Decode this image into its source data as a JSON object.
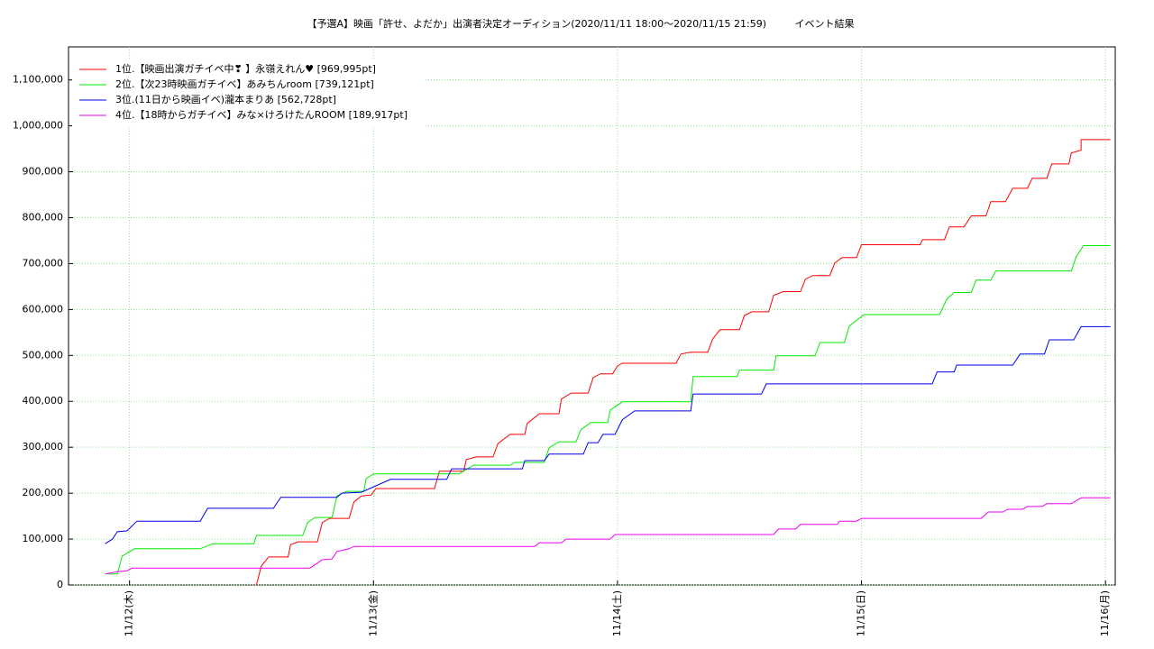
{
  "chart_data": {
    "type": "line",
    "title": "【予選A】映画「許せ、よだか」出演者決定オーディション(2020/11/11 18:00〜2020/11/15 21:59)         イベント結果",
    "xlim": [
      -0.25,
      4.04
    ],
    "xticks": [
      {
        "value": 0,
        "label": "11/12(木)"
      },
      {
        "value": 1,
        "label": "11/13(金)"
      },
      {
        "value": 2,
        "label": "11/14(土)"
      },
      {
        "value": 3,
        "label": "11/15(日)"
      },
      {
        "value": 4,
        "label": "11/16(月)"
      }
    ],
    "ylim": [
      0,
      1172000
    ],
    "yticks": [
      0,
      {
        "value": 100000,
        "label": "100,000"
      },
      {
        "value": 200000,
        "label": "200,000"
      },
      {
        "value": 300000,
        "label": "300,000"
      },
      {
        "value": 400000,
        "label": "400,000"
      },
      {
        "value": 500000,
        "label": "500,000"
      },
      {
        "value": 600000,
        "label": "600,000"
      },
      {
        "value": 700000,
        "label": "700,000"
      },
      {
        "value": 800000,
        "label": "800,000"
      },
      {
        "value": 900000,
        "label": "900,000"
      },
      {
        "value": 1000000,
        "label": "1,000,000"
      },
      {
        "value": 1100000,
        "label": "1,100,000"
      }
    ],
    "grid": true,
    "legend": "upper left",
    "series": [
      {
        "name": "1位.【映画出演ガチイベ中❣ 】永嶺えれん♥ [969,995pt]",
        "color": "#ff0000",
        "x": [
          0.52,
          0.54,
          0.57,
          0.65,
          0.66,
          0.69,
          0.77,
          0.79,
          0.82,
          0.9,
          0.92,
          0.95,
          0.99,
          1.01,
          1.25,
          1.27,
          1.37,
          1.38,
          1.42,
          1.49,
          1.51,
          1.56,
          1.62,
          1.63,
          1.68,
          1.76,
          1.77,
          1.81,
          1.88,
          1.9,
          1.93,
          1.98,
          2.0,
          2.02,
          2.24,
          2.26,
          2.3,
          2.37,
          2.39,
          2.42,
          2.5,
          2.52,
          2.55,
          2.62,
          2.64,
          2.68,
          2.75,
          2.77,
          2.8,
          2.87,
          2.89,
          2.92,
          2.98,
          3.0,
          3.24,
          3.25,
          3.34,
          3.36,
          3.42,
          3.45,
          3.51,
          3.53,
          3.59,
          3.62,
          3.68,
          3.7,
          3.76,
          3.78,
          3.85,
          3.86,
          3.9,
          3.9,
          4.02
        ],
        "values": [
          0,
          41000,
          61000,
          61000,
          88000,
          94000,
          94000,
          136000,
          145000,
          145000,
          181000,
          194000,
          196000,
          210000,
          210000,
          248000,
          248000,
          273000,
          279000,
          279000,
          308000,
          328000,
          328000,
          352000,
          373000,
          373000,
          405000,
          418000,
          418000,
          452000,
          460000,
          460000,
          477000,
          483000,
          483000,
          503000,
          507000,
          507000,
          536000,
          556000,
          556000,
          587000,
          595000,
          595000,
          631000,
          639000,
          639000,
          666000,
          674000,
          674000,
          701000,
          713000,
          713000,
          741000,
          741000,
          752000,
          752000,
          780000,
          780000,
          804000,
          804000,
          835000,
          835000,
          864000,
          864000,
          886000,
          886000,
          917000,
          917000,
          941000,
          947000,
          969995,
          969995
        ]
      },
      {
        "name": "2位.【次23時映画ガチイベ】あみちんroom [739,121pt]",
        "color": "#00ee00",
        "x": [
          -0.09,
          -0.05,
          -0.03,
          0.02,
          0.29,
          0.34,
          0.51,
          0.52,
          0.71,
          0.73,
          0.76,
          0.83,
          0.85,
          0.89,
          0.96,
          0.97,
          1.0,
          1.35,
          1.41,
          1.56,
          1.58,
          1.7,
          1.72,
          1.76,
          1.83,
          1.85,
          1.89,
          1.96,
          1.97,
          2.02,
          2.3,
          2.31,
          2.49,
          2.5,
          2.64,
          2.65,
          2.81,
          2.83,
          2.93,
          2.95,
          3.01,
          3.32,
          3.35,
          3.38,
          3.45,
          3.47,
          3.53,
          3.55,
          3.86,
          3.88,
          3.91,
          4.02
        ],
        "values": [
          24000,
          24000,
          63000,
          79000,
          79000,
          90000,
          90000,
          108000,
          108000,
          136000,
          147000,
          147000,
          194000,
          204000,
          204000,
          232000,
          242000,
          242000,
          261000,
          261000,
          267000,
          267000,
          299000,
          312000,
          312000,
          338000,
          354000,
          354000,
          381000,
          399000,
          399000,
          454000,
          454000,
          468000,
          468000,
          499000,
          499000,
          528000,
          528000,
          564000,
          589000,
          589000,
          623000,
          637000,
          637000,
          664000,
          664000,
          684000,
          684000,
          715000,
          739121,
          739121
        ]
      },
      {
        "name": "3位.(11日から映画イベ)瀧本まりあ [562,728pt]",
        "color": "#0000ee",
        "x": [
          -0.1,
          -0.07,
          -0.05,
          -0.01,
          0.03,
          0.29,
          0.32,
          0.59,
          0.62,
          0.85,
          0.87,
          0.95,
          1.07,
          1.3,
          1.32,
          1.61,
          1.62,
          1.7,
          1.72,
          1.86,
          1.88,
          1.92,
          1.94,
          1.99,
          2.02,
          2.07,
          2.3,
          2.31,
          2.59,
          2.61,
          3.29,
          3.31,
          3.38,
          3.39,
          3.62,
          3.65,
          3.75,
          3.77,
          3.87,
          3.9,
          4.02
        ],
        "values": [
          90000,
          100000,
          116000,
          118000,
          139000,
          139000,
          167000,
          167000,
          191000,
          191000,
          200000,
          202000,
          230000,
          230000,
          253000,
          253000,
          271000,
          271000,
          285000,
          285000,
          310000,
          310000,
          328000,
          328000,
          360000,
          379000,
          379000,
          416000,
          416000,
          438000,
          438000,
          464000,
          464000,
          479000,
          479000,
          503000,
          503000,
          534000,
          534000,
          562728,
          562728
        ]
      },
      {
        "name": "4位.【18時からガチイベ】みな×けろけたんROOM [189,917pt]",
        "color": "#ee00ee",
        "x": [
          -0.1,
          -0.05,
          -0.01,
          0.01,
          0.74,
          0.79,
          0.83,
          0.85,
          0.9,
          0.92,
          1.66,
          1.68,
          1.77,
          1.79,
          1.97,
          1.99,
          2.64,
          2.66,
          2.73,
          2.75,
          2.9,
          2.91,
          2.98,
          3.0,
          3.49,
          3.52,
          3.58,
          3.6,
          3.66,
          3.68,
          3.74,
          3.76,
          3.86,
          3.9,
          4.02
        ],
        "values": [
          24000,
          29000,
          31000,
          37000,
          37000,
          55000,
          57000,
          73000,
          79000,
          84000,
          84000,
          92000,
          92000,
          100000,
          100000,
          110000,
          110000,
          122000,
          122000,
          132000,
          132000,
          139000,
          139000,
          145000,
          145000,
          159000,
          159000,
          165000,
          165000,
          171000,
          171000,
          177000,
          177000,
          189917,
          189917
        ]
      }
    ]
  }
}
